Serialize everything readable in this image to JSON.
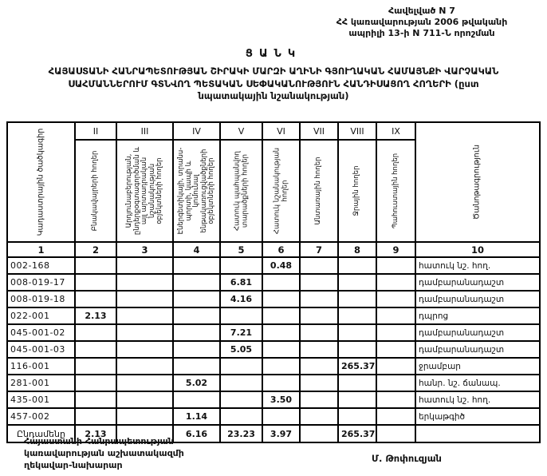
{
  "annex": {
    "line1": "Հավելված N 7",
    "line2": "ՀՀ կառավարության 2006 թվականի",
    "line3": "ապրիլի 13-ի N 711-Ն որոշման"
  },
  "title": "ՑԱՆԿ",
  "subtitle": {
    "line1": "ՀԱՅԱՍՏԱՆԻ ՀԱՆՐԱՊԵՏՈՒԹՅԱՆ ՇԻՐԱԿԻ ՄԱՐԶԻ ԱՂԻՆԻ ԳՅՈՒՂԱԿԱՆ ՀԱՄԱՅՆՔԻ ՎԱՐՉԱԿԱՆ",
    "line2": "ՍԱՀՄԱՆՆԵՐՈՒՄ ԳՏՆՎՈՂ ՊԵՏԱԿԱՆ ՍԵՓԱԿԱՆՈՒԹՅՈՒՆ ՀԱՆԴԻՍԱՑՈՂ ՀՈՂԵՐԻ (ըստ",
    "line3": "նպատակային նշանակության)"
  },
  "table": {
    "col1_header": "Կադաստրային ծածկագիր",
    "col10_header": "Ծանոթագրություն",
    "roman": [
      "II",
      "III",
      "IV",
      "V",
      "VI",
      "VII",
      "VIII",
      "IX"
    ],
    "vheaders": [
      "Բնակավայրերի հողեր",
      "Արդյունաբերության, ընդերքօգտագործման և այլ արտադրական նշանակության օբյեկտների հողեր",
      "Էներգետիկայի, տրանս­պորտի, կապի և կոմունալ ենթակառուցվածքների օբյեկտների հողեր",
      "Հատուկ պահպանվող տարածքների հողեր",
      "Հատուկ նշանակության հողեր",
      "Անտառային հողեր",
      "Ջրային հողեր",
      "Պահուստային հողեր"
    ],
    "numbers": [
      "1",
      "2",
      "3",
      "4",
      "5",
      "6",
      "7",
      "8",
      "9",
      "10"
    ],
    "rows": [
      {
        "cells": [
          "002-168",
          "",
          "",
          "",
          "",
          "0.48",
          "",
          "",
          "",
          "հատուկ նշ. հող."
        ]
      },
      {
        "cells": [
          "008-019-17",
          "",
          "",
          "",
          "6.81",
          "",
          "",
          "",
          "",
          "դամբարանադաշտ"
        ]
      },
      {
        "cells": [
          "008-019-18",
          "",
          "",
          "",
          "4.16",
          "",
          "",
          "",
          "",
          "դամբարանադաշտ"
        ]
      },
      {
        "cells": [
          "022-001",
          "2.13",
          "",
          "",
          "",
          "",
          "",
          "",
          "",
          "դպրոց"
        ]
      },
      {
        "cells": [
          "045-001-02",
          "",
          "",
          "",
          "7.21",
          "",
          "",
          "",
          "",
          "դամբարանադաշտ"
        ]
      },
      {
        "cells": [
          "045-001-03",
          "",
          "",
          "",
          "5.05",
          "",
          "",
          "",
          "",
          "դամբարանադաշտ"
        ]
      },
      {
        "cells": [
          "116-001",
          "",
          "",
          "",
          "",
          "",
          "",
          "265.37",
          "",
          "ջրամբար"
        ]
      },
      {
        "cells": [
          "281-001",
          "",
          "",
          "5.02",
          "",
          "",
          "",
          "",
          "",
          "հանր. նշ. ճանապ."
        ]
      },
      {
        "cells": [
          "435-001",
          "",
          "",
          "",
          "",
          "3.50",
          "",
          "",
          "",
          "հատուկ նշ. հող."
        ]
      },
      {
        "cells": [
          "457-002",
          "",
          "",
          "1.14",
          "",
          "",
          "",
          "",
          "",
          "երկաթգիծ"
        ]
      },
      {
        "total": true,
        "cells": [
          "Ընդամենը",
          "2.13",
          "",
          "6.16",
          "23.23",
          "3.97",
          "",
          "265.37",
          "",
          ""
        ]
      }
    ]
  },
  "footer": {
    "left_line1": "Հայաստանի Հանրապետության",
    "left_line2": "կառավարության աշխատակազմի",
    "left_line3": "ղեկավար-նախարար",
    "signature": "Մ. Թոփուզյան"
  }
}
